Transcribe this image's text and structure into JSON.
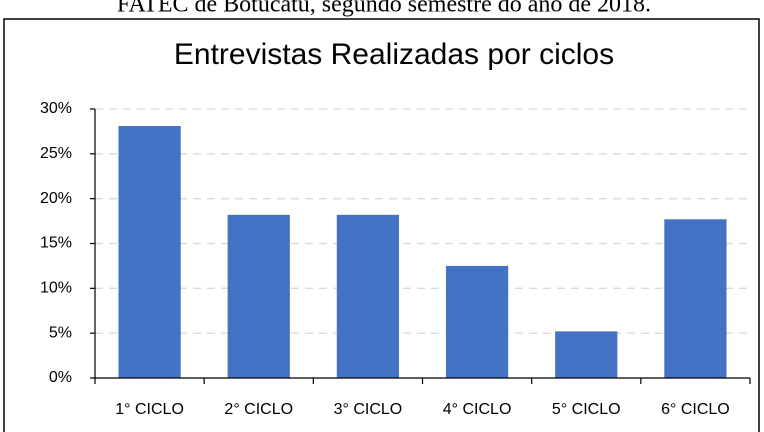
{
  "caption": "FATEC de Botucatu, segundo semestre do ano de 2018.",
  "chart_data": {
    "type": "bar",
    "title": "Entrevistas Realizadas por ciclos",
    "categories": [
      "1° CICLO",
      "2° CICLO",
      "3° CICLO",
      "4° CICLO",
      "5° CICLO",
      "6° CICLO"
    ],
    "values": [
      28.1,
      18.2,
      18.2,
      12.5,
      5.2,
      17.7
    ],
    "color": "#4472c4",
    "ylim": [
      0,
      30
    ],
    "yticks": [
      {
        "value": 0,
        "label": "0%"
      },
      {
        "value": 5,
        "label": "5%"
      },
      {
        "value": 10,
        "label": "10%"
      },
      {
        "value": 15,
        "label": "15%"
      },
      {
        "value": 20,
        "label": "20%"
      },
      {
        "value": 25,
        "label": "25%"
      },
      {
        "value": 30,
        "label": "30%"
      }
    ],
    "grid": true
  }
}
